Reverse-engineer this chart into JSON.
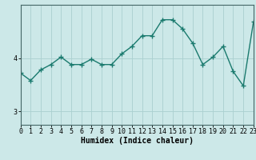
{
  "x": [
    0,
    1,
    2,
    3,
    4,
    5,
    6,
    7,
    8,
    9,
    10,
    11,
    12,
    13,
    14,
    15,
    16,
    17,
    18,
    19,
    20,
    21,
    22,
    23
  ],
  "y": [
    3.72,
    3.58,
    3.78,
    3.88,
    4.02,
    3.88,
    3.88,
    3.98,
    3.88,
    3.88,
    4.08,
    4.22,
    4.42,
    4.42,
    4.72,
    4.72,
    4.55,
    4.28,
    3.88,
    4.02,
    4.22,
    3.75,
    3.48,
    4.68
  ],
  "bg_color": "#cce8e8",
  "line_color": "#1a7a6e",
  "marker_color": "#1a7a6e",
  "grid_color_major": "#aad0d0",
  "grid_color_minor": "#c0dede",
  "axis_color": "#446666",
  "xlabel": "Humidex (Indice chaleur)",
  "ylim": [
    2.75,
    5.0
  ],
  "xlim": [
    0,
    23
  ],
  "yticks": [
    3,
    4
  ],
  "xticks": [
    0,
    1,
    2,
    3,
    4,
    5,
    6,
    7,
    8,
    9,
    10,
    11,
    12,
    13,
    14,
    15,
    16,
    17,
    18,
    19,
    20,
    21,
    22,
    23
  ],
  "xlabel_fontsize": 7.0,
  "tick_fontsize": 6.0
}
